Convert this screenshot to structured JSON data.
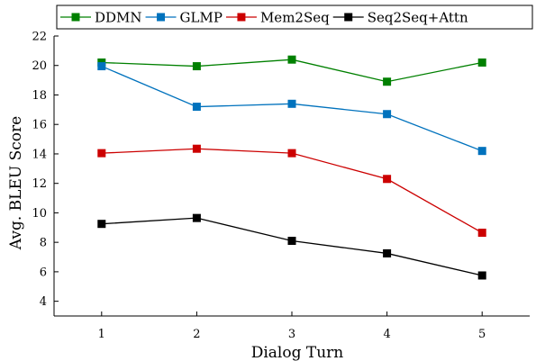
{
  "chart_data": {
    "type": "line",
    "x": [
      1,
      2,
      3,
      4,
      5
    ],
    "xlabel": "Dialog Turn",
    "ylabel": "Avg. BLEU Score",
    "xlim": [
      0.5,
      5.5
    ],
    "ylim": [
      3,
      22
    ],
    "yticks": [
      4,
      6,
      8,
      10,
      12,
      14,
      16,
      18,
      20,
      22
    ],
    "xticks": [
      1,
      2,
      3,
      4,
      5
    ],
    "grid": false,
    "legend_position": "top",
    "series": [
      {
        "name": "DDMN",
        "color": "#008000",
        "values": [
          20.2,
          19.95,
          20.4,
          18.9,
          20.2
        ]
      },
      {
        "name": "GLMP",
        "color": "#0072BD",
        "values": [
          19.95,
          17.2,
          17.4,
          16.7,
          14.2
        ]
      },
      {
        "name": "Mem2Seq",
        "color": "#CC0000",
        "values": [
          14.05,
          14.35,
          14.05,
          12.3,
          8.65
        ]
      },
      {
        "name": "Seq2Seq+Attn",
        "color": "#000000",
        "values": [
          9.25,
          9.65,
          8.1,
          7.25,
          5.75
        ]
      }
    ]
  }
}
